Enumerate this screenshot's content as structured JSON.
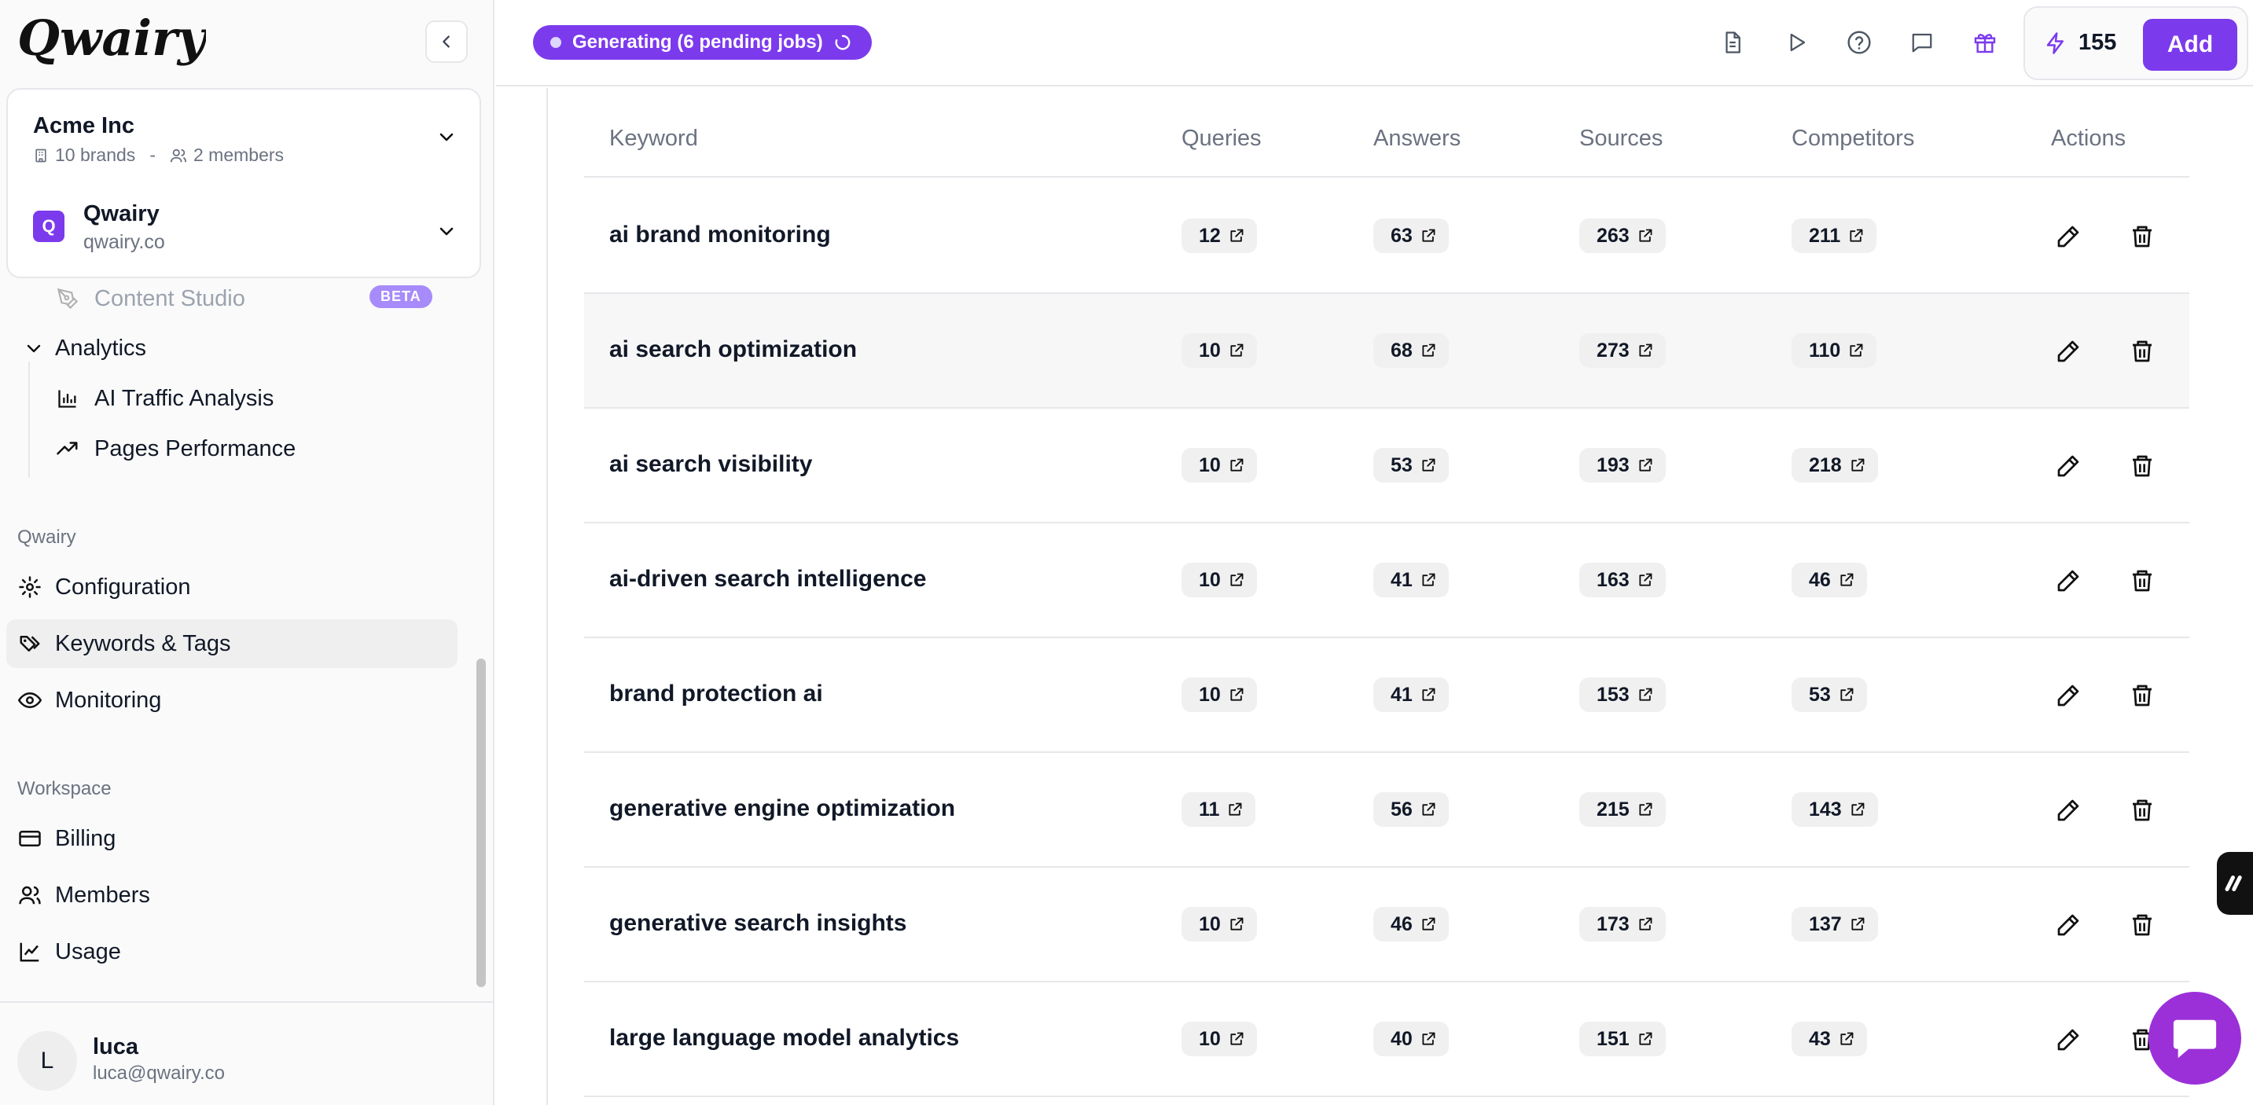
{
  "brand": {
    "logo_text": "Qwairy",
    "accent": "#7c3aed"
  },
  "switcher": {
    "org": {
      "name": "Acme Inc",
      "brands": "10 brands",
      "separator": "-",
      "members": "2 members"
    },
    "brand": {
      "badge": "Q",
      "name": "Qwairy",
      "domain": "qwairy.co"
    }
  },
  "nav": {
    "content_studio": {
      "label": "Content Studio",
      "badge": "BETA"
    },
    "analytics": {
      "label": "Analytics",
      "items": [
        {
          "label": "AI Traffic Analysis",
          "icon": "bar-chart-icon"
        },
        {
          "label": "Pages Performance",
          "icon": "trending-up-icon"
        }
      ]
    },
    "qwairy_section": {
      "label": "Qwairy",
      "items": [
        {
          "label": "Configuration",
          "icon": "gear-icon"
        },
        {
          "label": "Keywords & Tags",
          "icon": "tags-icon",
          "active": true
        },
        {
          "label": "Monitoring",
          "icon": "eye-icon"
        }
      ]
    },
    "workspace_section": {
      "label": "Workspace",
      "items": [
        {
          "label": "Billing",
          "icon": "credit-card-icon"
        },
        {
          "label": "Members",
          "icon": "users-icon"
        },
        {
          "label": "Usage",
          "icon": "line-chart-icon"
        }
      ]
    }
  },
  "user": {
    "initial": "L",
    "name": "luca",
    "email": "luca@qwairy.co"
  },
  "header": {
    "status": "Generating (6 pending jobs)",
    "credits": "155",
    "add_label": "Add"
  },
  "table": {
    "columns": [
      "Keyword",
      "Queries",
      "Answers",
      "Sources",
      "Competitors",
      "Actions"
    ],
    "rows": [
      {
        "keyword": "ai brand monitoring",
        "queries": "12",
        "answers": "63",
        "sources": "263",
        "competitors": "211"
      },
      {
        "keyword": "ai search optimization",
        "queries": "10",
        "answers": "68",
        "sources": "273",
        "competitors": "110"
      },
      {
        "keyword": "ai search visibility",
        "queries": "10",
        "answers": "53",
        "sources": "193",
        "competitors": "218"
      },
      {
        "keyword": "ai-driven search intelligence",
        "queries": "10",
        "answers": "41",
        "sources": "163",
        "competitors": "46"
      },
      {
        "keyword": "brand protection ai",
        "queries": "10",
        "answers": "41",
        "sources": "153",
        "competitors": "53"
      },
      {
        "keyword": "generative engine optimization",
        "queries": "11",
        "answers": "56",
        "sources": "215",
        "competitors": "143"
      },
      {
        "keyword": "generative search insights",
        "queries": "10",
        "answers": "46",
        "sources": "173",
        "competitors": "137"
      },
      {
        "keyword": "large language model analytics",
        "queries": "10",
        "answers": "40",
        "sources": "151",
        "competitors": "43"
      }
    ]
  }
}
